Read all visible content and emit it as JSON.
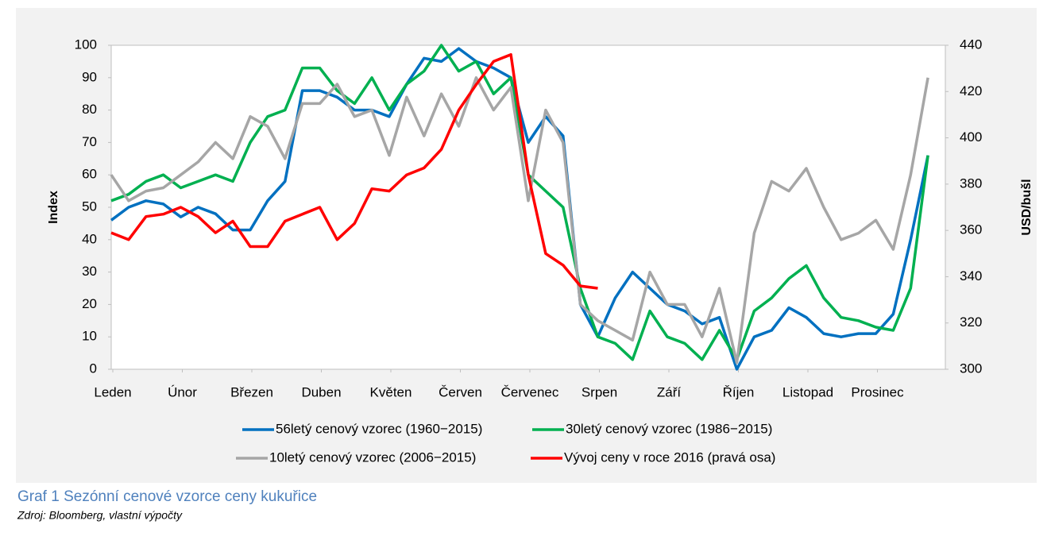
{
  "chart_data": {
    "type": "line",
    "title": "Graf 1  Sezónní cenové vzorce ceny kukuřice",
    "source": "Zdroj: Bloomberg, vlastní výpočty",
    "y_label": "Index",
    "y2_label": "USD/bušl",
    "x": [
      0,
      0.25,
      0.5,
      0.75,
      1,
      1.25,
      1.5,
      1.75,
      2,
      2.25,
      2.5,
      2.75,
      3,
      3.25,
      3.5,
      3.75,
      4,
      4.25,
      4.5,
      4.75,
      5,
      5.25,
      5.5,
      5.75,
      6,
      6.25,
      6.5,
      6.75,
      7,
      7.25,
      7.5,
      7.75,
      8,
      8.25,
      8.5,
      8.75,
      9,
      9.25,
      9.5,
      9.75,
      10,
      10.25,
      10.5,
      10.75,
      11,
      11.25,
      11.5,
      11.75
    ],
    "xlim": [
      0,
      12
    ],
    "xticks": [
      {
        "value": 0,
        "label": "Leden"
      },
      {
        "value": 1,
        "label": "Únor"
      },
      {
        "value": 2,
        "label": "Březen"
      },
      {
        "value": 3,
        "label": "Duben"
      },
      {
        "value": 4,
        "label": "Květen"
      },
      {
        "value": 5,
        "label": "Červen"
      },
      {
        "value": 6,
        "label": "Červenec"
      },
      {
        "value": 7,
        "label": "Srpen"
      },
      {
        "value": 8,
        "label": "Září"
      },
      {
        "value": 9,
        "label": "Říjen"
      },
      {
        "value": 10,
        "label": "Listopad"
      },
      {
        "value": 11,
        "label": "Prosinec"
      }
    ],
    "ylim": [
      0,
      100
    ],
    "yticks": [
      0,
      10,
      20,
      30,
      40,
      50,
      60,
      70,
      80,
      90,
      100
    ],
    "y2lim": [
      300,
      440
    ],
    "y2ticks": [
      300,
      320,
      340,
      360,
      380,
      400,
      420,
      440
    ],
    "series": [
      {
        "name": "56letý cenový vzorec (1960−2015)",
        "color": "#0070c0",
        "values": [
          46,
          50,
          52,
          51,
          47,
          50,
          48,
          43,
          43,
          52,
          58,
          86,
          86,
          84,
          80,
          80,
          78,
          88,
          96,
          95,
          99,
          95,
          93,
          90,
          70,
          78,
          72,
          20,
          10,
          22,
          30,
          25,
          20,
          18,
          14,
          16,
          0,
          10,
          12,
          19,
          16,
          11,
          10,
          11,
          11,
          17,
          40,
          66
        ]
      },
      {
        "name": "30letý cenový vzorec (1986−2015)",
        "color": "#00b050",
        "values": [
          52,
          54,
          58,
          60,
          56,
          58,
          60,
          58,
          70,
          78,
          80,
          93,
          93,
          86,
          82,
          90,
          80,
          88,
          92,
          100,
          92,
          95,
          85,
          90,
          60,
          55,
          50,
          25,
          10,
          8,
          3,
          18,
          10,
          8,
          3,
          12,
          3,
          18,
          22,
          28,
          32,
          22,
          16,
          15,
          13,
          12,
          25,
          66
        ]
      },
      {
        "name": "10letý cenový vzorec (2006−2015)",
        "color": "#a6a6a6",
        "values": [
          60,
          52,
          55,
          56,
          60,
          64,
          70,
          65,
          78,
          75,
          65,
          82,
          82,
          88,
          78,
          80,
          66,
          84,
          72,
          85,
          75,
          90,
          80,
          87,
          52,
          80,
          70,
          20,
          15,
          12,
          9,
          30,
          20,
          20,
          10,
          25,
          2,
          42,
          58,
          55,
          62,
          50,
          40,
          42,
          46,
          37,
          60,
          90
        ]
      },
      {
        "name": "Vývoj ceny v roce 2016 (pravá osa)",
        "color": "#ff0000",
        "axis": "y2",
        "values": [
          359,
          356,
          366,
          367,
          370,
          366,
          359,
          364,
          353,
          353,
          364,
          367,
          370,
          356,
          363,
          378,
          377,
          384,
          387,
          395,
          412,
          423,
          433,
          436,
          384,
          350,
          345,
          336,
          335,
          null,
          null,
          null,
          null,
          null,
          null,
          null,
          null,
          null,
          null,
          null,
          null,
          null,
          null,
          null,
          null,
          null,
          null,
          null
        ]
      }
    ]
  }
}
